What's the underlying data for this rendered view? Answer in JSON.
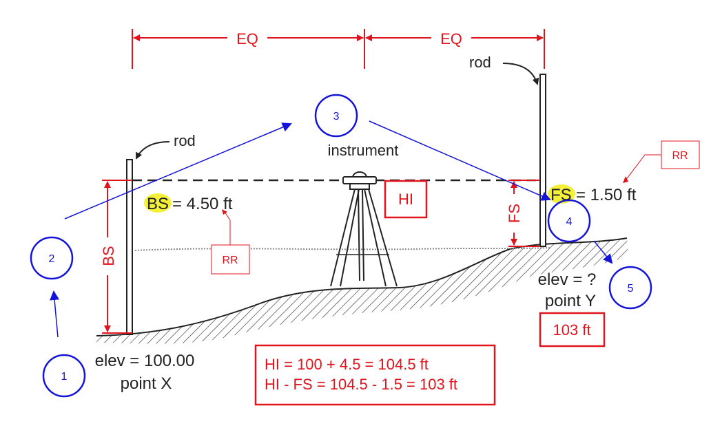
{
  "labels": {
    "eq_left": "EQ",
    "eq_right": "EQ",
    "rod_left": "rod",
    "rod_right": "rod",
    "instrument": "instrument",
    "bs_reading_abbr": "BS",
    "bs_reading_value": "= 4.50 ft",
    "fs_reading_abbr": "FS",
    "fs_reading_value": "= 1.50 ft",
    "bs_vertical": "BS",
    "fs_vertical": "FS",
    "hi": "HI",
    "rr_left": "RR",
    "rr_right": "RR",
    "elev_x": "elev = 100.00",
    "point_x": "point X",
    "elev_y": "elev = ?",
    "point_y": "point Y",
    "answer": "103 ft",
    "formula_line1": "HI = 100 + 4.5 = 104.5 ft",
    "formula_line2": "HI - FS = 104.5 - 1.5 = 103 ft"
  },
  "steps": [
    "1",
    "2",
    "3",
    "4",
    "5"
  ],
  "colors": {
    "annotation_red": "#e0141c",
    "step_blue": "#1414d8",
    "highlight_yellow": "#f4ef3a",
    "line_black": "#222222"
  }
}
